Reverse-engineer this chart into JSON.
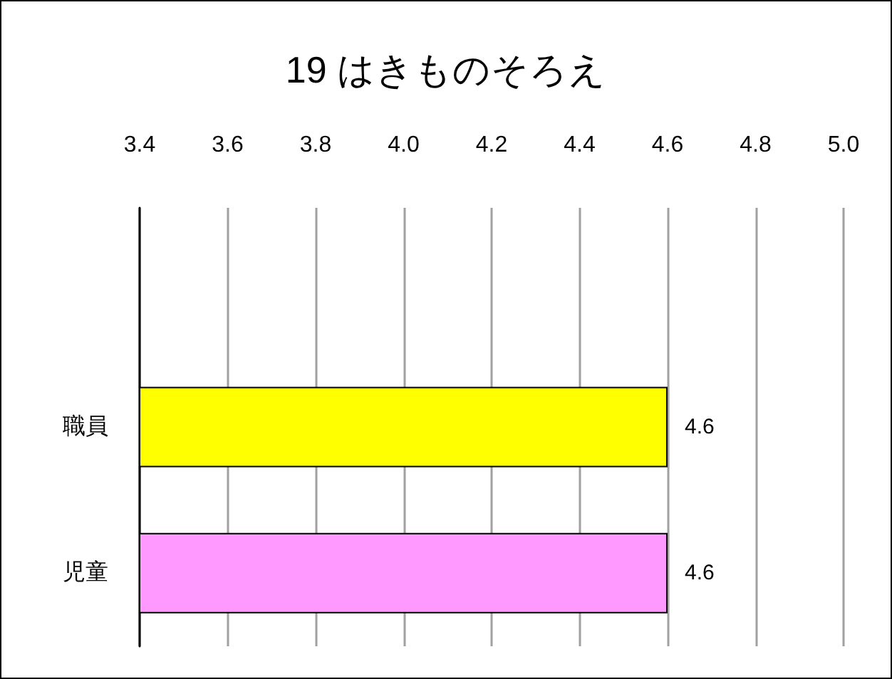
{
  "chart_data": {
    "type": "bar",
    "orientation": "horizontal",
    "title": "19 はきものそろえ",
    "categories": [
      null,
      "職員",
      "児童"
    ],
    "values": [
      null,
      4.6,
      4.6
    ],
    "colors": [
      null,
      "#ffff00",
      "#ff99ff"
    ],
    "xlim": [
      3.4,
      5.0
    ],
    "xticks": [
      3.4,
      3.6,
      3.8,
      {
        "value": 4.0,
        "label": "4.0"
      },
      4.2,
      4.4,
      4.6,
      4.8,
      {
        "value": 5.0,
        "label": "5.0"
      }
    ],
    "grid": "x",
    "data_labels": true
  }
}
